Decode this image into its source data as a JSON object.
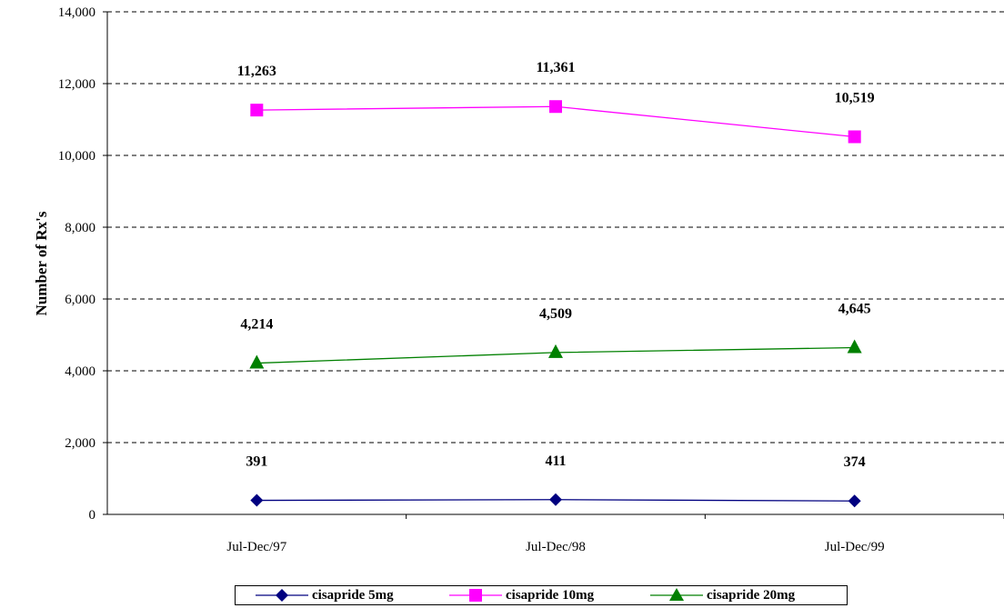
{
  "chart_data": {
    "type": "line",
    "title": "",
    "xlabel": "",
    "ylabel": "Number of Rx's",
    "categories": [
      "Jul-Dec/97",
      "Jul-Dec/98",
      "Jul-Dec/99"
    ],
    "ylim": [
      0,
      14000
    ],
    "y_ticks": [
      "0",
      "2,000",
      "4,000",
      "6,000",
      "8,000",
      "10,000",
      "12,000",
      "14,000"
    ],
    "grid": "horizontal dashed",
    "legend_position": "bottom",
    "series": [
      {
        "name": "cisapride 5mg",
        "values": [
          391,
          411,
          374
        ],
        "labels": [
          "391",
          "411",
          "374"
        ],
        "color": "#000080",
        "marker": "diamond"
      },
      {
        "name": "cisapride 10mg",
        "values": [
          11263,
          11361,
          10519
        ],
        "labels": [
          "11,263",
          "11,361",
          "10,519"
        ],
        "color": "#FF00FF",
        "marker": "square"
      },
      {
        "name": "cisapride 20mg",
        "values": [
          4214,
          4509,
          4645
        ],
        "labels": [
          "4,214",
          "4,509",
          "4,645"
        ],
        "color": "#008000",
        "marker": "triangle"
      }
    ]
  }
}
